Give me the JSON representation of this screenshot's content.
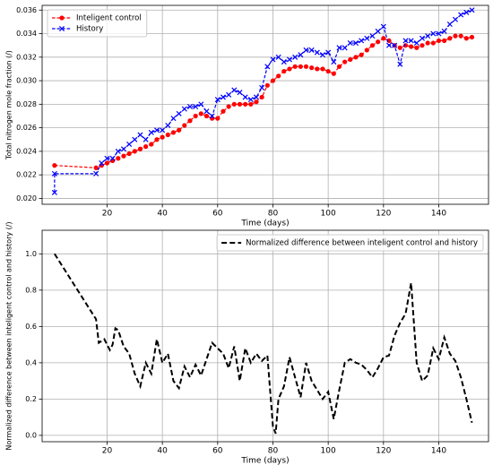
{
  "chart_data": [
    {
      "type": "line",
      "xlabel": "Time (days)",
      "ylabel": "Total nitrogen mole fraction (/)",
      "x": [
        1,
        16,
        18,
        20,
        22,
        24,
        26,
        28,
        30,
        32,
        34,
        36,
        38,
        40,
        42,
        44,
        46,
        48,
        50,
        52,
        54,
        56,
        58,
        60,
        62,
        64,
        66,
        68,
        70,
        72,
        74,
        76,
        78,
        80,
        82,
        84,
        86,
        88,
        90,
        92,
        94,
        96,
        98,
        100,
        102,
        104,
        106,
        108,
        110,
        112,
        114,
        116,
        118,
        120,
        122,
        124,
        126,
        128,
        130,
        132,
        134,
        136,
        138,
        140,
        142,
        144,
        146,
        148,
        150,
        152
      ],
      "series": [
        {
          "name": "Inteligent control",
          "color": "#ff0000",
          "marker": "o",
          "linestyle": "dashed",
          "values": [
            0.0228,
            0.0226,
            0.0228,
            0.023,
            0.0232,
            0.0234,
            0.0236,
            0.0238,
            0.024,
            0.0242,
            0.0244,
            0.0246,
            0.025,
            0.0252,
            0.0254,
            0.0256,
            0.0258,
            0.0262,
            0.0266,
            0.027,
            0.0272,
            0.027,
            0.0268,
            0.0268,
            0.0274,
            0.0278,
            0.028,
            0.028,
            0.028,
            0.028,
            0.0282,
            0.0286,
            0.0296,
            0.03,
            0.0304,
            0.0308,
            0.031,
            0.0312,
            0.0312,
            0.0312,
            0.0311,
            0.031,
            0.031,
            0.0308,
            0.0306,
            0.0312,
            0.0316,
            0.0318,
            0.032,
            0.0322,
            0.0326,
            0.033,
            0.0333,
            0.0336,
            0.0334,
            0.033,
            0.0328,
            0.033,
            0.0329,
            0.0328,
            0.033,
            0.0332,
            0.0332,
            0.0334,
            0.0334,
            0.0336,
            0.0338,
            0.0338,
            0.0336,
            0.0337
          ]
        },
        {
          "name": "History",
          "color": "#0000ff",
          "marker": "x",
          "linestyle": "dashed",
          "x": [
            1,
            1,
            16,
            18,
            20,
            22,
            24,
            26,
            28,
            30,
            32,
            34,
            36,
            38,
            40,
            42,
            44,
            46,
            48,
            50,
            52,
            54,
            56,
            58,
            60,
            62,
            64,
            66,
            68,
            70,
            72,
            74,
            76,
            78,
            80,
            82,
            84,
            86,
            88,
            90,
            92,
            94,
            96,
            98,
            100,
            102,
            104,
            106,
            108,
            110,
            112,
            114,
            116,
            118,
            120,
            122,
            124,
            126,
            128,
            130,
            132,
            134,
            136,
            138,
            140,
            142,
            144,
            146,
            148,
            150,
            152
          ],
          "values": [
            0.0205,
            0.0221,
            0.0221,
            0.023,
            0.0234,
            0.0234,
            0.024,
            0.0242,
            0.0246,
            0.025,
            0.0254,
            0.025,
            0.0256,
            0.0258,
            0.0258,
            0.0262,
            0.0268,
            0.0272,
            0.0276,
            0.0278,
            0.0278,
            0.028,
            0.0274,
            0.027,
            0.0284,
            0.0286,
            0.0288,
            0.0292,
            0.029,
            0.0286,
            0.0284,
            0.0286,
            0.0294,
            0.0312,
            0.0318,
            0.032,
            0.0316,
            0.0318,
            0.032,
            0.0322,
            0.0326,
            0.0326,
            0.0324,
            0.0322,
            0.0324,
            0.0316,
            0.0328,
            0.0328,
            0.0332,
            0.0332,
            0.0334,
            0.0336,
            0.0338,
            0.0342,
            0.0346,
            0.033,
            0.033,
            0.0314,
            0.0334,
            0.0334,
            0.0332,
            0.0336,
            0.0338,
            0.034,
            0.034,
            0.0342,
            0.0348,
            0.0352,
            0.0356,
            0.0358,
            0.036
          ]
        }
      ],
      "xlim": [
        -3.5,
        158
      ],
      "xticks": [
        20,
        40,
        60,
        80,
        100,
        120,
        140
      ],
      "ylim": [
        0.0195,
        0.0364
      ],
      "yticks": [
        {
          "value": 0.02,
          "label": "0.020"
        },
        0.022,
        0.024,
        0.026,
        0.028,
        {
          "value": 0.03,
          "label": "0.030"
        },
        0.032,
        0.034,
        0.036
      ],
      "grid": true,
      "legend": "upper left"
    },
    {
      "type": "line",
      "xlabel": "Time (days)",
      "ylabel": "Normalized difference between inteligent control and history (/)",
      "x": [
        1,
        16,
        17,
        19,
        21,
        22,
        23,
        24,
        26,
        28,
        30,
        32,
        34,
        36,
        38,
        40,
        42,
        44,
        46,
        48,
        50,
        52,
        54,
        56,
        58,
        60,
        62,
        64,
        66,
        68,
        70,
        72,
        74,
        76,
        78,
        80,
        81,
        82,
        84,
        86,
        88,
        90,
        92,
        94,
        96,
        98,
        100,
        102,
        104,
        106,
        108,
        110,
        112,
        114,
        116,
        118,
        120,
        122,
        124,
        126,
        128,
        130,
        132,
        134,
        136,
        138,
        140,
        142,
        144,
        146,
        148,
        150,
        152
      ],
      "series": [
        {
          "name": "Normalized difference between inteligent control and history",
          "color": "#000000",
          "marker": "none",
          "linestyle": "dashed",
          "values": [
            1.0,
            0.64,
            0.51,
            0.53,
            0.47,
            0.5,
            0.59,
            0.58,
            0.49,
            0.45,
            0.34,
            0.27,
            0.4,
            0.34,
            0.53,
            0.4,
            0.45,
            0.3,
            0.26,
            0.38,
            0.32,
            0.39,
            0.33,
            0.42,
            0.51,
            0.48,
            0.45,
            0.37,
            0.49,
            0.3,
            0.48,
            0.4,
            0.45,
            0.41,
            0.44,
            0.05,
            0.01,
            0.2,
            0.27,
            0.43,
            0.32,
            0.21,
            0.4,
            0.3,
            0.25,
            0.2,
            0.24,
            0.09,
            0.25,
            0.4,
            0.42,
            0.4,
            0.39,
            0.36,
            0.32,
            0.37,
            0.43,
            0.44,
            0.55,
            0.62,
            0.67,
            0.84,
            0.4,
            0.3,
            0.33,
            0.48,
            0.42,
            0.54,
            0.45,
            0.41,
            0.32,
            0.2,
            0.07
          ]
        }
      ],
      "xlim": [
        -3.5,
        158
      ],
      "xticks": [
        20,
        40,
        60,
        80,
        100,
        120,
        140
      ],
      "ylim": [
        -0.035,
        1.13
      ],
      "yticks": [
        {
          "value": 0,
          "label": "0.0"
        },
        0.2,
        0.4,
        0.6,
        0.8,
        {
          "value": 1,
          "label": "1.0"
        }
      ],
      "grid": true,
      "legend": "upper right"
    }
  ]
}
